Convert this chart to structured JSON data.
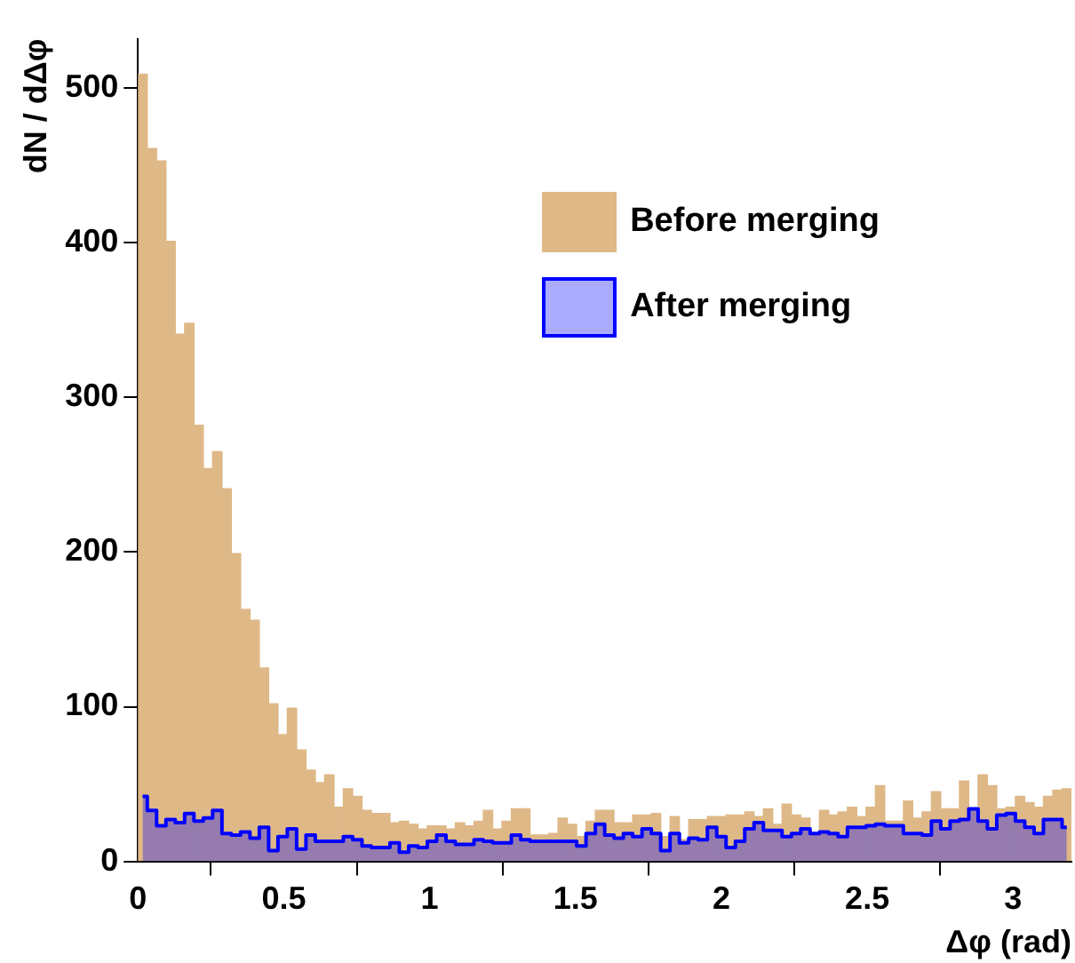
{
  "chart_data": {
    "type": "histogram",
    "xlabel": "Δφ (rad)",
    "ylabel": "dN / dΔφ",
    "bins": [
      0,
      0.032,
      0.064,
      0.096,
      0.128,
      0.16,
      0.192,
      0.224,
      0.256,
      0.288,
      0.32,
      0.352,
      0.384,
      0.416,
      0.448,
      0.48,
      0.512,
      0.544,
      0.576,
      0.608,
      0.64,
      0.672,
      0.704,
      0.736,
      0.768,
      0.8,
      0.832,
      0.864,
      0.896,
      0.928,
      0.96,
      0.992,
      1.024,
      1.056,
      1.088,
      1.12,
      1.152,
      1.184,
      1.216,
      1.248,
      1.28,
      1.312,
      1.344,
      1.376,
      1.408,
      1.44,
      1.472,
      1.504,
      1.536,
      1.568,
      1.6,
      1.632,
      1.664,
      1.696,
      1.728,
      1.76,
      1.792,
      1.824,
      1.856,
      1.888,
      1.92,
      1.952,
      1.984,
      2.016,
      2.048,
      2.08,
      2.112,
      2.144,
      2.176,
      2.208,
      2.24,
      2.272,
      2.304,
      2.336,
      2.368,
      2.4,
      2.432,
      2.464,
      2.496,
      2.528,
      2.56,
      2.592,
      2.624,
      2.656,
      2.688,
      2.72,
      2.752,
      2.784,
      2.816,
      2.848,
      2.88,
      2.912,
      2.944,
      2.976,
      3.008,
      3.04,
      3.072,
      3.104,
      3.136,
      3.168,
      3.2
    ],
    "series": [
      {
        "name": "Before merging",
        "color": "#deb887",
        "values": [
          509,
          461,
          453,
          401,
          341,
          348,
          282,
          254,
          265,
          241,
          199,
          163,
          156,
          125,
          102,
          82,
          99,
          72,
          59,
          51,
          56,
          35,
          47,
          42,
          33,
          31,
          31,
          25,
          26,
          24,
          21,
          23,
          23,
          21,
          25,
          23,
          26,
          33,
          21,
          26,
          34,
          34,
          17,
          17,
          18,
          28,
          24,
          16,
          26,
          33,
          33,
          25,
          25,
          30,
          30,
          31,
          16,
          29,
          14,
          27,
          27,
          29,
          29,
          30,
          30,
          32,
          29,
          34,
          24,
          37,
          30,
          28,
          18,
          33,
          30,
          32,
          35,
          29,
          35,
          49,
          26,
          26,
          39,
          28,
          32,
          45,
          34,
          34,
          52,
          34,
          56,
          49,
          34,
          35,
          42,
          38,
          35,
          42,
          46,
          47
        ]
      },
      {
        "name": "After merging",
        "type": "area",
        "color": "#0000ff",
        "x": [
          0.016,
          0.048,
          0.08,
          0.112,
          0.144,
          0.176,
          0.208,
          0.24,
          0.272,
          0.304,
          0.336,
          0.368,
          0.4,
          0.432,
          0.464,
          0.496,
          0.528,
          0.56,
          0.592,
          0.624,
          0.656,
          0.688,
          0.72,
          0.752,
          0.784,
          0.816,
          0.848,
          0.88,
          0.912,
          0.944,
          0.976,
          1.008,
          1.04,
          1.072,
          1.104,
          1.136,
          1.168,
          1.2,
          1.232,
          1.264,
          1.296,
          1.328,
          1.36,
          1.392,
          1.424,
          1.456,
          1.488,
          1.52,
          1.552,
          1.584,
          1.616,
          1.648,
          1.68,
          1.712,
          1.744,
          1.776,
          1.808,
          1.84,
          1.872,
          1.904,
          1.936,
          1.968,
          2,
          2.032,
          2.064,
          2.096,
          2.128,
          2.16,
          2.192,
          2.224,
          2.256,
          2.288,
          2.32,
          2.352,
          2.384,
          2.416,
          2.448,
          2.48,
          2.512,
          2.544,
          2.576,
          2.608,
          2.64,
          2.672,
          2.704,
          2.736,
          2.768,
          2.8,
          2.832,
          2.864,
          2.896,
          2.928,
          2.96,
          2.992,
          3.024,
          3.056,
          3.088,
          3.12,
          3.152,
          3.184
        ],
        "values": [
          42,
          33,
          23,
          27,
          25,
          31,
          26,
          28,
          33,
          18,
          17,
          19,
          15,
          22,
          7,
          16,
          21,
          8,
          17,
          13,
          13,
          13,
          16,
          14,
          10,
          9,
          9,
          12,
          6,
          10,
          9,
          13,
          17,
          13,
          11,
          11,
          14,
          13,
          12,
          12,
          17,
          14,
          13,
          13,
          13,
          13,
          13,
          10,
          18,
          24,
          17,
          15,
          18,
          16,
          21,
          18,
          7,
          18,
          12,
          15,
          14,
          22,
          16,
          9,
          13,
          21,
          25,
          20,
          20,
          16,
          18,
          21,
          18,
          19,
          18,
          16,
          22,
          22,
          23,
          24,
          23,
          23,
          18,
          18,
          17,
          26,
          21,
          26,
          27,
          34,
          26,
          21,
          30,
          31,
          26,
          22,
          18,
          27,
          27,
          22
        ]
      }
    ],
    "xlim": [
      0,
      3.2
    ],
    "xticks": [
      0,
      0.5,
      1,
      1.5,
      2,
      2.5,
      3
    ],
    "ylim": [
      0,
      532
    ],
    "yticks": [
      0,
      100,
      200,
      300,
      400,
      500
    ],
    "grid": false,
    "legend": "top right"
  }
}
